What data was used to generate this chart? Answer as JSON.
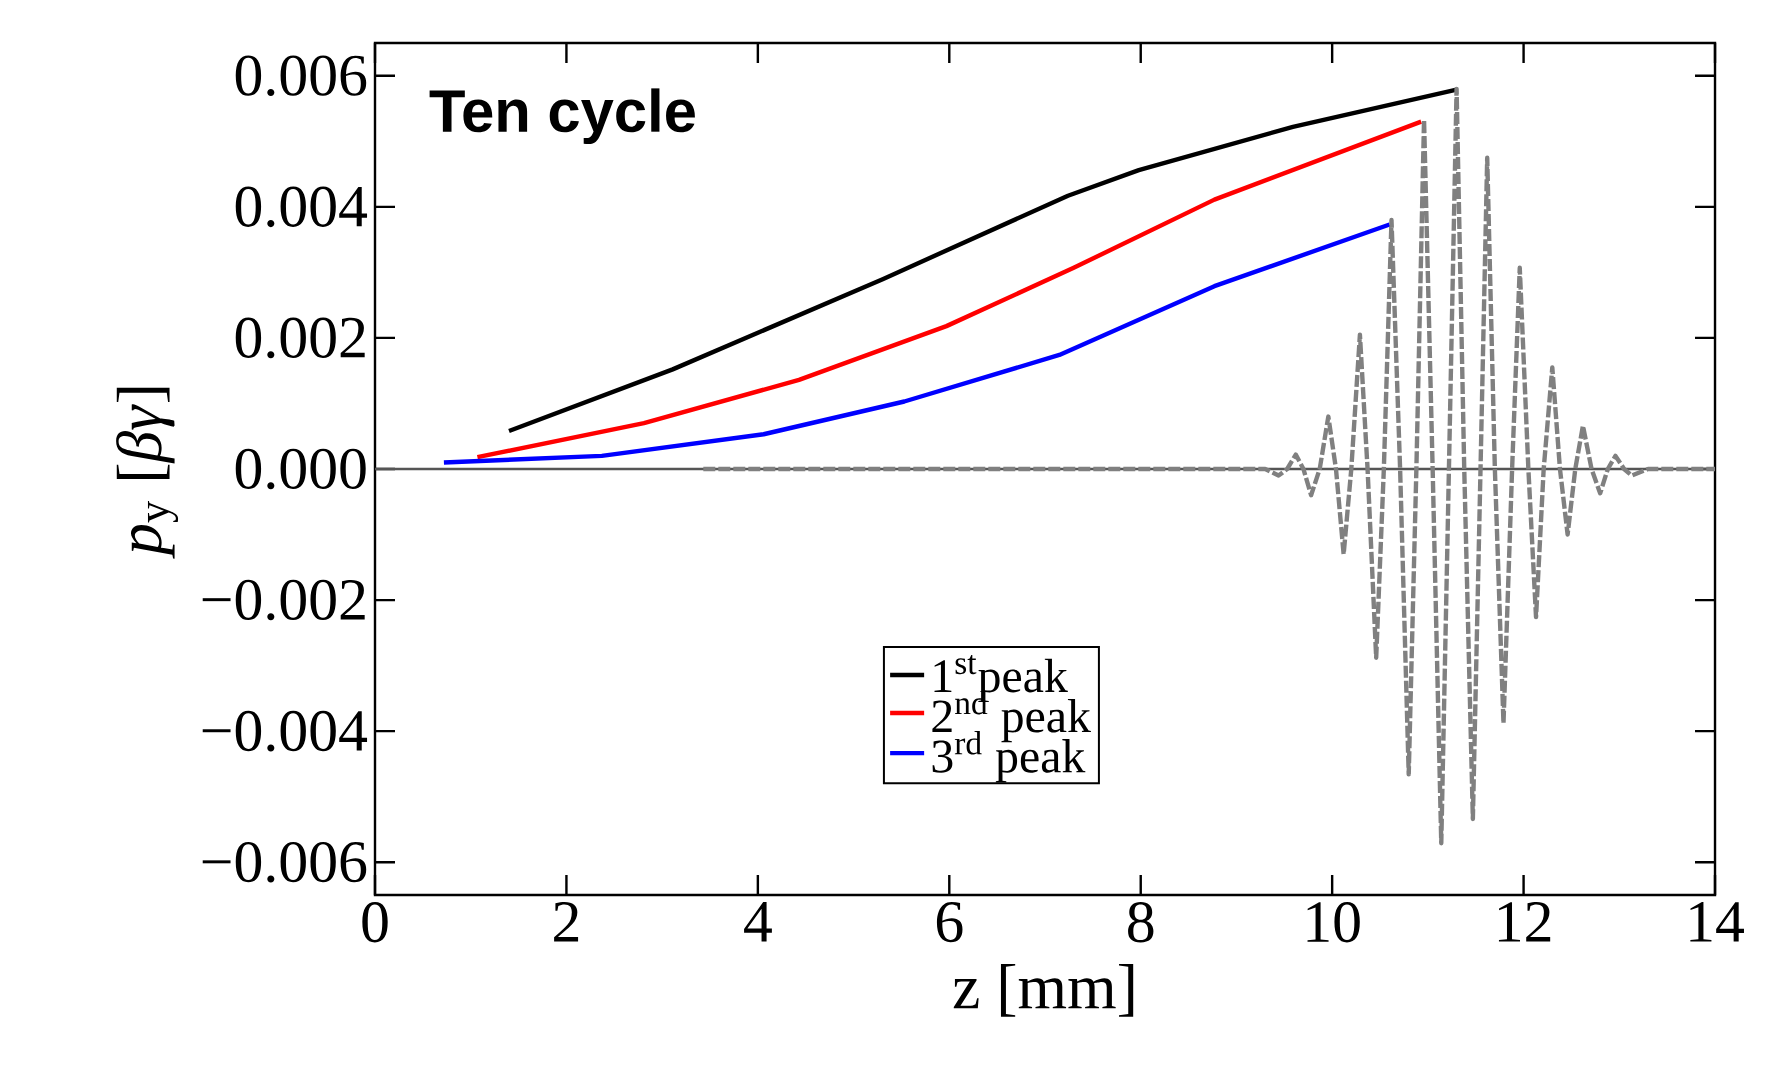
{
  "chart_data": {
    "type": "line",
    "xlabel": "z [mm]",
    "ylabel": "*p*$_{y}$ [*βγ*]",
    "annotations": [
      "**Ten cycle**"
    ],
    "xlim": [
      0,
      14
    ],
    "xticks": [
      0,
      2,
      4,
      6,
      8,
      10,
      12,
      14
    ],
    "ylim": [
      -0.0065,
      0.0065
    ],
    "yticks": [
      {
        "value": -0.006,
        "label": "−0.006"
      },
      {
        "value": -0.004,
        "label": "−0.004"
      },
      {
        "value": -0.002,
        "label": "−0.002"
      },
      {
        "value": 0,
        "label": "0.000"
      },
      {
        "value": 0.002,
        "label": "0.002"
      },
      {
        "value": 0.004,
        "label": "0.004"
      },
      {
        "value": 0.006,
        "label": "0.006"
      }
    ],
    "grid": false,
    "legend": "bottom",
    "ref_lines": [
      {
        "axis": "y",
        "value": 0,
        "color": "#555555"
      }
    ],
    "series": [
      {
        "name": "1$^{st}$peak",
        "color": "#000000",
        "x": [
          1.4,
          3.11,
          5.31,
          7.24,
          7.98,
          9.59,
          11.3
        ],
        "values": [
          0.00058,
          0.00152,
          0.0029,
          0.00417,
          0.00456,
          0.00522,
          0.00579
        ]
      },
      {
        "name": "2$^{nd}$ peak",
        "color": "#ff0000",
        "x": [
          1.07,
          2.81,
          4.43,
          5.97,
          7.3,
          8.77,
          10.93
        ],
        "values": [
          0.00018,
          0.0007,
          0.00136,
          0.00218,
          0.00307,
          0.00411,
          0.0053
        ]
      },
      {
        "name": "3$^{rd}$ peak",
        "color": "#0000ff",
        "x": [
          0.72,
          2.37,
          4.06,
          5.53,
          7.15,
          8.77,
          10.6
        ],
        "values": [
          0.0001,
          0.0002,
          0.00053,
          0.00103,
          0.00174,
          0.00279,
          0.00373
        ]
      },
      {
        "color": "#808080",
        "line_style": "dashed",
        "x": [
          3.43,
          9.3,
          9.44,
          9.53,
          9.62,
          9.7,
          9.78,
          9.87,
          9.96,
          10.04,
          10.12,
          10.2,
          10.29,
          10.37,
          10.46,
          10.54,
          10.62,
          10.71,
          10.8,
          10.88,
          10.96,
          11.05,
          11.14,
          11.22,
          11.3,
          11.38,
          11.47,
          11.55,
          11.62,
          11.7,
          11.79,
          11.88,
          11.96,
          12.05,
          12.13,
          12.21,
          12.3,
          12.38,
          12.46,
          12.54,
          12.62,
          12.71,
          12.8,
          12.88,
          12.96,
          13.05,
          13.13,
          13.3,
          14
        ],
        "values": [
          0,
          0,
          -0.0001,
          0,
          0.00022,
          0,
          -0.0004,
          0,
          0.0008,
          0,
          -0.0013,
          0,
          0.00205,
          0,
          -0.00288,
          0,
          0.0038,
          0,
          -0.00466,
          0,
          0.00533,
          0,
          -0.00571,
          0,
          0.0058,
          0,
          -0.00534,
          0,
          0.00475,
          0,
          -0.00388,
          0,
          0.00307,
          0,
          -0.00226,
          0,
          0.00155,
          0,
          -0.001,
          0,
          0.00066,
          0,
          -0.00037,
          0,
          0.0002,
          0,
          -0.0001,
          0,
          0
        ]
      }
    ]
  }
}
